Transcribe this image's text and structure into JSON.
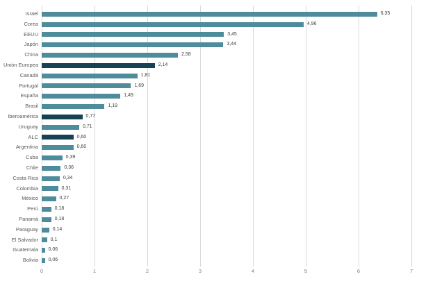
{
  "chart_data": {
    "type": "bar",
    "orientation": "horizontal",
    "title": "",
    "xlabel": "",
    "ylabel": "",
    "categories": [
      "Israel",
      "Corea",
      "EEUU",
      "Japón",
      "China",
      "Unión Europea",
      "Canadá",
      "Portugal",
      "España",
      "Brasil",
      "Iberoamérica",
      "Uruguay",
      "ALC",
      "Argentina",
      "Cuba",
      "Chile",
      "Costa Rica",
      "Colombia",
      "México",
      "Perú",
      "Panamá",
      "Paraguay",
      "El Salvador",
      "Guatemala",
      "Bolivia"
    ],
    "values": [
      6.35,
      4.96,
      3.45,
      3.44,
      2.58,
      2.14,
      1.81,
      1.69,
      1.49,
      1.19,
      0.77,
      0.71,
      0.6,
      0.6,
      0.39,
      0.36,
      0.34,
      0.31,
      0.27,
      0.18,
      0.18,
      0.14,
      0.1,
      0.06,
      0.06
    ],
    "value_labels": [
      "6,35",
      "4,96",
      "3,45",
      "3,44",
      "2,58",
      "2,14",
      "1,81",
      "1,69",
      "1,49",
      "1,19",
      "0,77",
      "0,71",
      "0,60",
      "0,60",
      "0,39",
      "0,36",
      "0,34",
      "0,31",
      "0,27",
      "0,18",
      "0,18",
      "0,14",
      "0,1",
      "0,06",
      "0,06"
    ],
    "highlighted_indices": [
      5,
      10,
      12
    ],
    "highlighted_categories": [
      "Unión Europea",
      "Iberoamérica",
      "ALC"
    ],
    "x_axis": {
      "min": 0,
      "max": 7,
      "ticks": [
        "0",
        "1",
        "2",
        "3",
        "4",
        "5",
        "6",
        "7"
      ]
    },
    "grid": "vertical",
    "legend": null,
    "colors": {
      "bar": "#4e8b9b",
      "bar_highlight": "#164254",
      "gridline": "#d9d9d9",
      "category_label": "#595959",
      "value_label": "#404040",
      "tick_label": "#7f7f7f",
      "background": "#ffffff"
    }
  }
}
